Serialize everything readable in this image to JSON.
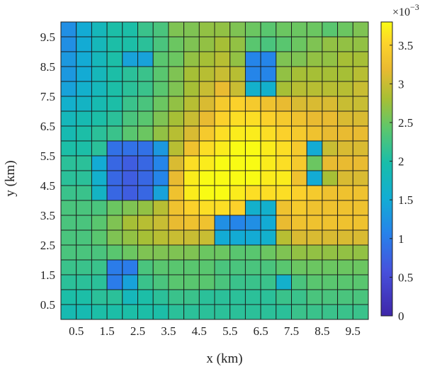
{
  "chart_data": {
    "type": "heatmap",
    "title": "",
    "xlabel": "x (km)",
    "ylabel": "y (km)",
    "x": [
      0.25,
      0.75,
      1.25,
      1.75,
      2.25,
      2.75,
      3.25,
      3.75,
      4.25,
      4.75,
      5.25,
      5.75,
      6.25,
      6.75,
      7.25,
      7.75,
      8.25,
      8.75,
      9.25,
      9.75
    ],
    "y": [
      0.25,
      0.75,
      1.25,
      1.75,
      2.25,
      2.75,
      3.25,
      3.75,
      4.25,
      4.75,
      5.25,
      5.75,
      6.25,
      6.75,
      7.25,
      7.75,
      8.25,
      8.75,
      9.25,
      9.75
    ],
    "xlim": [
      0,
      10
    ],
    "ylim": [
      0,
      10
    ],
    "xticks": [
      0.5,
      1.5,
      2.5,
      3.5,
      4.5,
      5.5,
      6.5,
      7.5,
      8.5,
      9.5
    ],
    "xtick_labels": [
      "0.5",
      "1.5",
      "2.5",
      "3.5",
      "4.5",
      "5.5",
      "6.5",
      "7.5",
      "8.5",
      "9.5"
    ],
    "yticks": [
      0.5,
      1.5,
      2.5,
      3.5,
      4.5,
      5.5,
      6.5,
      7.5,
      8.5,
      9.5
    ],
    "ytick_labels": [
      "0.5",
      "1.5",
      "2.5",
      "3.5",
      "4.5",
      "5.5",
      "6.5",
      "7.5",
      "8.5",
      "9.5"
    ],
    "grid": true,
    "colormap": "parula",
    "clim": [
      0,
      3.8
    ],
    "value_unit_multiplier": "×10⁻³",
    "colorbar": {
      "location": "right",
      "ticks": [
        0,
        0.5,
        1,
        1.5,
        2,
        2.5,
        3,
        3.5
      ],
      "tick_labels": [
        "0",
        "0.5",
        "1",
        "1.5",
        "2",
        "2.5",
        "3",
        "3.5"
      ],
      "exponent_base": "×10",
      "exponent_power": "−3"
    },
    "values_rows_top_to_bottom": [
      [
        1.2,
        1.5,
        1.8,
        2.0,
        2.0,
        2.2,
        2.3,
        2.6,
        2.6,
        2.7,
        2.7,
        2.6,
        2.5,
        2.4,
        2.5,
        2.5,
        2.5,
        2.4,
        2.5,
        2.6
      ],
      [
        1.2,
        1.5,
        1.8,
        2.0,
        2.0,
        2.1,
        2.3,
        2.5,
        2.6,
        2.7,
        2.8,
        2.7,
        2.4,
        2.3,
        2.4,
        2.5,
        2.6,
        2.7,
        2.7,
        2.7
      ],
      [
        1.3,
        1.5,
        1.8,
        2.0,
        1.4,
        1.4,
        2.4,
        2.5,
        2.7,
        2.8,
        2.9,
        2.7,
        1.1,
        1.1,
        2.6,
        2.6,
        2.7,
        2.7,
        2.8,
        2.8
      ],
      [
        1.3,
        1.5,
        1.8,
        2.0,
        2.1,
        2.2,
        2.4,
        2.6,
        2.8,
        2.9,
        3.0,
        2.9,
        1.1,
        1.1,
        2.7,
        2.8,
        2.8,
        2.8,
        2.8,
        2.9
      ],
      [
        1.4,
        1.6,
        1.8,
        2.0,
        2.1,
        2.2,
        2.4,
        2.6,
        2.8,
        3.0,
        3.2,
        3.0,
        1.6,
        1.6,
        2.8,
        2.9,
        2.9,
        2.9,
        2.9,
        3.0
      ],
      [
        1.6,
        1.7,
        1.9,
        2.0,
        2.2,
        2.3,
        2.5,
        2.7,
        2.9,
        3.1,
        3.4,
        3.5,
        3.4,
        3.3,
        3.2,
        3.1,
        3.1,
        3.1,
        3.0,
        3.0
      ],
      [
        1.8,
        1.9,
        2.0,
        2.1,
        2.3,
        2.4,
        2.6,
        2.8,
        3.0,
        3.2,
        3.5,
        3.6,
        3.6,
        3.5,
        3.4,
        3.3,
        3.2,
        3.2,
        3.1,
        3.1
      ],
      [
        1.9,
        2.0,
        2.1,
        2.2,
        2.4,
        2.5,
        2.7,
        2.9,
        3.1,
        3.4,
        3.6,
        3.7,
        3.7,
        3.6,
        3.5,
        3.4,
        3.3,
        3.2,
        3.2,
        3.2
      ],
      [
        2.0,
        2.0,
        2.1,
        0.9,
        0.9,
        0.9,
        1.3,
        2.9,
        3.3,
        3.6,
        3.7,
        3.8,
        3.8,
        3.7,
        3.6,
        3.4,
        1.5,
        3.0,
        3.1,
        3.1
      ],
      [
        2.1,
        2.1,
        1.5,
        0.8,
        0.7,
        0.8,
        1.1,
        3.1,
        3.6,
        3.7,
        3.8,
        3.8,
        3.8,
        3.7,
        3.6,
        3.4,
        2.5,
        3.2,
        3.2,
        3.2
      ],
      [
        2.1,
        2.1,
        1.6,
        0.8,
        0.7,
        0.8,
        1.1,
        3.2,
        3.7,
        3.8,
        3.8,
        3.8,
        3.8,
        3.7,
        3.7,
        3.3,
        1.5,
        2.8,
        3.1,
        3.1
      ],
      [
        2.2,
        2.2,
        1.7,
        0.8,
        0.7,
        0.8,
        1.4,
        3.3,
        3.7,
        3.8,
        3.8,
        3.7,
        3.6,
        3.6,
        3.6,
        3.5,
        3.4,
        3.3,
        3.3,
        3.3
      ],
      [
        2.3,
        2.3,
        2.3,
        2.5,
        2.6,
        2.7,
        2.9,
        3.3,
        3.5,
        3.6,
        3.6,
        3.5,
        1.6,
        1.6,
        3.3,
        3.4,
        3.3,
        3.3,
        3.3,
        3.3
      ],
      [
        2.3,
        2.3,
        2.4,
        2.6,
        2.8,
        2.9,
        3.0,
        3.2,
        3.3,
        3.3,
        1.2,
        1.1,
        1.2,
        1.5,
        3.2,
        3.3,
        3.3,
        3.3,
        3.3,
        3.3
      ],
      [
        2.3,
        2.3,
        2.4,
        2.6,
        2.7,
        2.8,
        2.9,
        3.0,
        3.0,
        3.0,
        1.5,
        1.5,
        1.5,
        1.6,
        2.9,
        3.1,
        3.1,
        3.1,
        3.1,
        3.1
      ],
      [
        2.3,
        2.3,
        2.3,
        2.4,
        2.5,
        2.6,
        2.6,
        2.6,
        2.6,
        2.5,
        2.5,
        2.4,
        2.4,
        2.5,
        2.6,
        2.7,
        2.7,
        2.7,
        2.7,
        2.7
      ],
      [
        2.2,
        2.2,
        2.2,
        1.0,
        1.0,
        2.3,
        2.4,
        2.4,
        2.4,
        2.4,
        2.3,
        2.3,
        2.3,
        2.3,
        2.4,
        2.5,
        2.5,
        2.5,
        2.5,
        2.5
      ],
      [
        2.1,
        2.1,
        2.1,
        1.0,
        1.4,
        2.2,
        2.3,
        2.4,
        2.4,
        2.4,
        2.3,
        2.2,
        2.2,
        2.2,
        1.6,
        2.3,
        2.4,
        2.4,
        2.4,
        2.4
      ],
      [
        2.0,
        2.0,
        2.1,
        2.1,
        1.8,
        2.0,
        2.1,
        2.2,
        2.2,
        2.1,
        2.1,
        2.1,
        2.1,
        2.1,
        2.2,
        2.2,
        2.3,
        2.3,
        2.3,
        2.3
      ],
      [
        1.9,
        1.9,
        2.0,
        2.0,
        2.0,
        2.0,
        2.0,
        2.1,
        2.1,
        2.1,
        2.1,
        2.1,
        2.1,
        2.1,
        2.1,
        2.2,
        2.2,
        2.2,
        2.2,
        2.2
      ]
    ]
  }
}
